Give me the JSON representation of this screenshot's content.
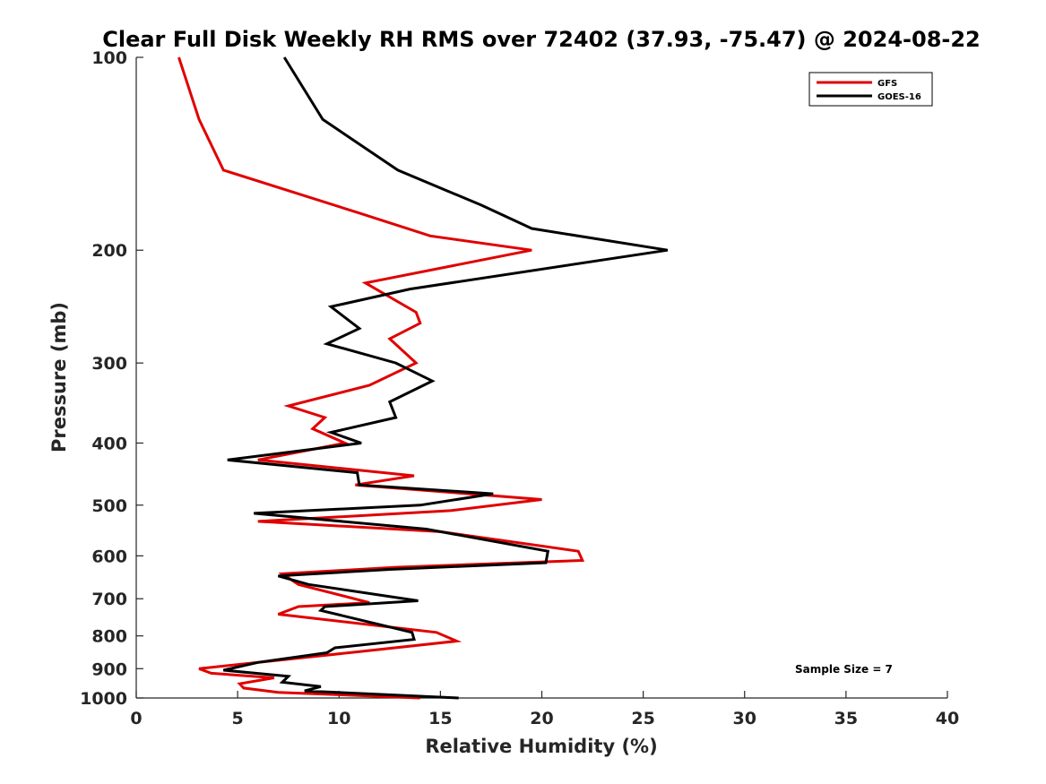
{
  "chart_data": {
    "type": "line",
    "title": "Clear Full Disk Weekly RH RMS over 72402 (37.93, -75.47) @ 2024-08-22",
    "xlabel": "Relative Humidity (%)",
    "ylabel": "Pressure (mb)",
    "xlim": [
      0,
      40
    ],
    "ylim": [
      100,
      1000
    ],
    "yscale": "log",
    "y_reversed": true,
    "grid": false,
    "xticks": [
      0,
      5,
      10,
      15,
      20,
      25,
      30,
      35,
      40
    ],
    "xtick_labels": [
      "0",
      "5",
      "10",
      "15",
      "20",
      "25",
      "30",
      "35",
      "40"
    ],
    "yticks": [
      100,
      200,
      300,
      400,
      500,
      600,
      700,
      800,
      900,
      1000
    ],
    "ytick_labels": [
      "100",
      "200",
      "300",
      "400",
      "500",
      "600",
      "700",
      "800",
      "900",
      "1000"
    ],
    "legend_position": "top-right",
    "annotation": "Sample Size = 7",
    "series": [
      {
        "name": "GFS",
        "color": "#e00000",
        "points": [
          [
            2.1,
            100
          ],
          [
            3.1,
            125
          ],
          [
            4.3,
            150
          ],
          [
            11.0,
            175
          ],
          [
            14.5,
            190
          ],
          [
            19.5,
            200
          ],
          [
            11.3,
            225
          ],
          [
            13.8,
            250
          ],
          [
            14.0,
            260
          ],
          [
            12.5,
            275
          ],
          [
            13.8,
            300
          ],
          [
            11.5,
            325
          ],
          [
            7.5,
            350
          ],
          [
            9.3,
            365
          ],
          [
            8.7,
            380
          ],
          [
            10.3,
            400
          ],
          [
            6.0,
            425
          ],
          [
            13.7,
            450
          ],
          [
            10.8,
            465
          ],
          [
            20.0,
            490
          ],
          [
            15.5,
            510
          ],
          [
            6.0,
            530
          ],
          [
            15.0,
            550
          ],
          [
            21.8,
            590
          ],
          [
            22.0,
            610
          ],
          [
            12.8,
            625
          ],
          [
            7.2,
            640
          ],
          [
            8.0,
            665
          ],
          [
            11.5,
            710
          ],
          [
            8.0,
            720
          ],
          [
            7.0,
            740
          ],
          [
            14.8,
            790
          ],
          [
            15.8,
            815
          ],
          [
            10.5,
            850
          ],
          [
            3.1,
            900
          ],
          [
            3.7,
            915
          ],
          [
            6.8,
            930
          ],
          [
            5.1,
            950
          ],
          [
            5.3,
            965
          ],
          [
            7.0,
            980
          ],
          [
            14.0,
            1000
          ]
        ]
      },
      {
        "name": "GOES-16",
        "color": "#000000",
        "points": [
          [
            7.3,
            100
          ],
          [
            9.2,
            125
          ],
          [
            12.9,
            150
          ],
          [
            17.0,
            170
          ],
          [
            19.5,
            185
          ],
          [
            26.2,
            200
          ],
          [
            13.5,
            230
          ],
          [
            9.6,
            245
          ],
          [
            11.0,
            265
          ],
          [
            9.4,
            280
          ],
          [
            12.8,
            300
          ],
          [
            14.6,
            320
          ],
          [
            12.5,
            345
          ],
          [
            12.8,
            365
          ],
          [
            9.6,
            385
          ],
          [
            11.1,
            400
          ],
          [
            4.5,
            425
          ],
          [
            10.9,
            445
          ],
          [
            11.0,
            465
          ],
          [
            17.6,
            480
          ],
          [
            14.0,
            500
          ],
          [
            5.8,
            515
          ],
          [
            14.3,
            545
          ],
          [
            20.3,
            590
          ],
          [
            20.2,
            615
          ],
          [
            12.5,
            630
          ],
          [
            7.0,
            645
          ],
          [
            8.5,
            665
          ],
          [
            13.9,
            705
          ],
          [
            9.3,
            720
          ],
          [
            9.1,
            730
          ],
          [
            13.6,
            790
          ],
          [
            13.7,
            810
          ],
          [
            9.8,
            835
          ],
          [
            9.4,
            850
          ],
          [
            6.0,
            880
          ],
          [
            4.3,
            905
          ],
          [
            7.5,
            925
          ],
          [
            7.2,
            945
          ],
          [
            9.1,
            960
          ],
          [
            8.3,
            975
          ],
          [
            15.9,
            1000
          ]
        ]
      }
    ]
  }
}
